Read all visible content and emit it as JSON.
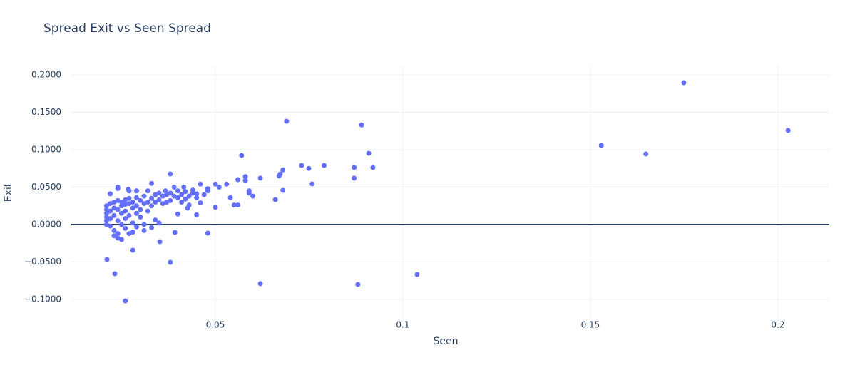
{
  "chart_data": {
    "type": "scatter",
    "title": "Spread Exit vs Seen Spread",
    "x_label": "Seen",
    "y_label": "Exit",
    "color": "#636efa",
    "grid": true,
    "zeroline": true,
    "xlim": [
      0.0116,
      0.2137
    ],
    "ylim": [
      -0.1286,
      0.2114
    ],
    "xticks": [
      0.05,
      0.1,
      0.15,
      0.2
    ],
    "yticks": [
      {
        "value": -0.1,
        "label": "−0.1000"
      },
      {
        "value": -0.05,
        "label": "−0.0500"
      },
      {
        "value": 0,
        "label": "0.0000"
      },
      {
        "value": 0.05,
        "label": "0.0500"
      },
      {
        "value": 0.1,
        "label": "0.1000"
      },
      {
        "value": 0.15,
        "label": "0.1500"
      },
      {
        "value": 0.2,
        "label": "0.2000"
      }
    ],
    "x": [
      0.1749,
      0.2027,
      0.1529,
      0.1648,
      0.069,
      0.089,
      0.0909,
      0.092,
      0.087,
      0.087,
      0.057,
      0.073,
      0.0749,
      0.079,
      0.068,
      0.0673,
      0.067,
      0.0758,
      0.068,
      0.066,
      0.062,
      0.058,
      0.058,
      0.056,
      0.059,
      0.059,
      0.06,
      0.054,
      0.055,
      0.056,
      0.053,
      0.05,
      0.051,
      0.05,
      0.048,
      0.046,
      0.048,
      0.1038,
      0.088,
      0.062,
      0.038,
      0.026,
      0.0232,
      0.0211,
      0.028,
      0.0352,
      0.0392,
      0.038,
      0.045,
      0.046,
      0.045,
      0.04,
      0.043,
      0.0426,
      0.0416,
      0.039,
      0.0367,
      0.033,
      0.0268,
      0.024,
      0.022,
      0.021,
      0.021,
      0.021,
      0.021,
      0.021,
      0.021,
      0.022,
      0.022,
      0.022,
      0.022,
      0.023,
      0.023,
      0.023,
      0.023,
      0.023,
      0.024,
      0.024,
      0.024,
      0.024,
      0.024,
      0.025,
      0.025,
      0.025,
      0.025,
      0.025,
      0.026,
      0.026,
      0.026,
      0.026,
      0.026,
      0.027,
      0.027,
      0.027,
      0.027,
      0.028,
      0.028,
      0.028,
      0.028,
      0.029,
      0.029,
      0.029,
      0.029,
      0.03,
      0.03,
      0.03,
      0.031,
      0.031,
      0.031,
      0.031,
      0.032,
      0.032,
      0.032,
      0.033,
      0.033,
      0.033,
      0.034,
      0.034,
      0.034,
      0.035,
      0.035,
      0.035,
      0.036,
      0.036,
      0.037,
      0.037,
      0.038,
      0.038,
      0.039,
      0.04,
      0.04,
      0.041,
      0.041,
      0.042,
      0.042,
      0.043,
      0.044,
      0.044,
      0.045,
      0.047,
      0.048,
      0.024,
      0.027,
      0.029
    ],
    "values": [
      0.1895,
      0.1257,
      0.1057,
      0.0943,
      0.138,
      0.133,
      0.0952,
      0.0762,
      0.0762,
      0.062,
      0.0924,
      0.079,
      0.075,
      0.079,
      0.073,
      0.0676,
      0.065,
      0.0543,
      0.0457,
      0.0333,
      0.062,
      0.064,
      0.059,
      0.06,
      0.045,
      0.042,
      0.038,
      0.036,
      0.026,
      0.026,
      0.054,
      0.054,
      0.05,
      0.023,
      0.045,
      0.054,
      -0.0114,
      -0.0667,
      -0.08,
      -0.079,
      -0.0505,
      -0.102,
      -0.0657,
      -0.0467,
      -0.0343,
      -0.0229,
      -0.0105,
      0.0676,
      0.041,
      0.029,
      0.013,
      0.014,
      0.026,
      0.022,
      0.05,
      0.05,
      0.045,
      0.055,
      0.047,
      0.05,
      0.041,
      0.025,
      0.02,
      0.015,
      0.01,
      0.005,
      0.0,
      0.028,
      0.018,
      0.008,
      -0.002,
      0.03,
      0.022,
      0.012,
      -0.008,
      -0.015,
      0.032,
      0.02,
      0.005,
      -0.012,
      -0.018,
      0.03,
      0.025,
      0.015,
      0.0,
      -0.02,
      0.033,
      0.027,
      0.018,
      0.008,
      -0.005,
      0.035,
      0.028,
      0.012,
      -0.012,
      0.03,
      0.022,
      0.002,
      -0.01,
      0.036,
      0.025,
      0.015,
      -0.003,
      0.032,
      0.02,
      0.01,
      0.038,
      0.028,
      0.0,
      -0.008,
      0.045,
      0.03,
      0.018,
      0.035,
      0.025,
      -0.004,
      0.04,
      0.03,
      0.006,
      0.042,
      0.033,
      0.002,
      0.038,
      0.028,
      0.04,
      0.03,
      0.042,
      0.032,
      0.038,
      0.036,
      0.045,
      0.04,
      0.03,
      0.044,
      0.034,
      0.038,
      0.042,
      0.046,
      0.036,
      0.04,
      0.048,
      0.048,
      0.045,
      0.045
    ]
  }
}
